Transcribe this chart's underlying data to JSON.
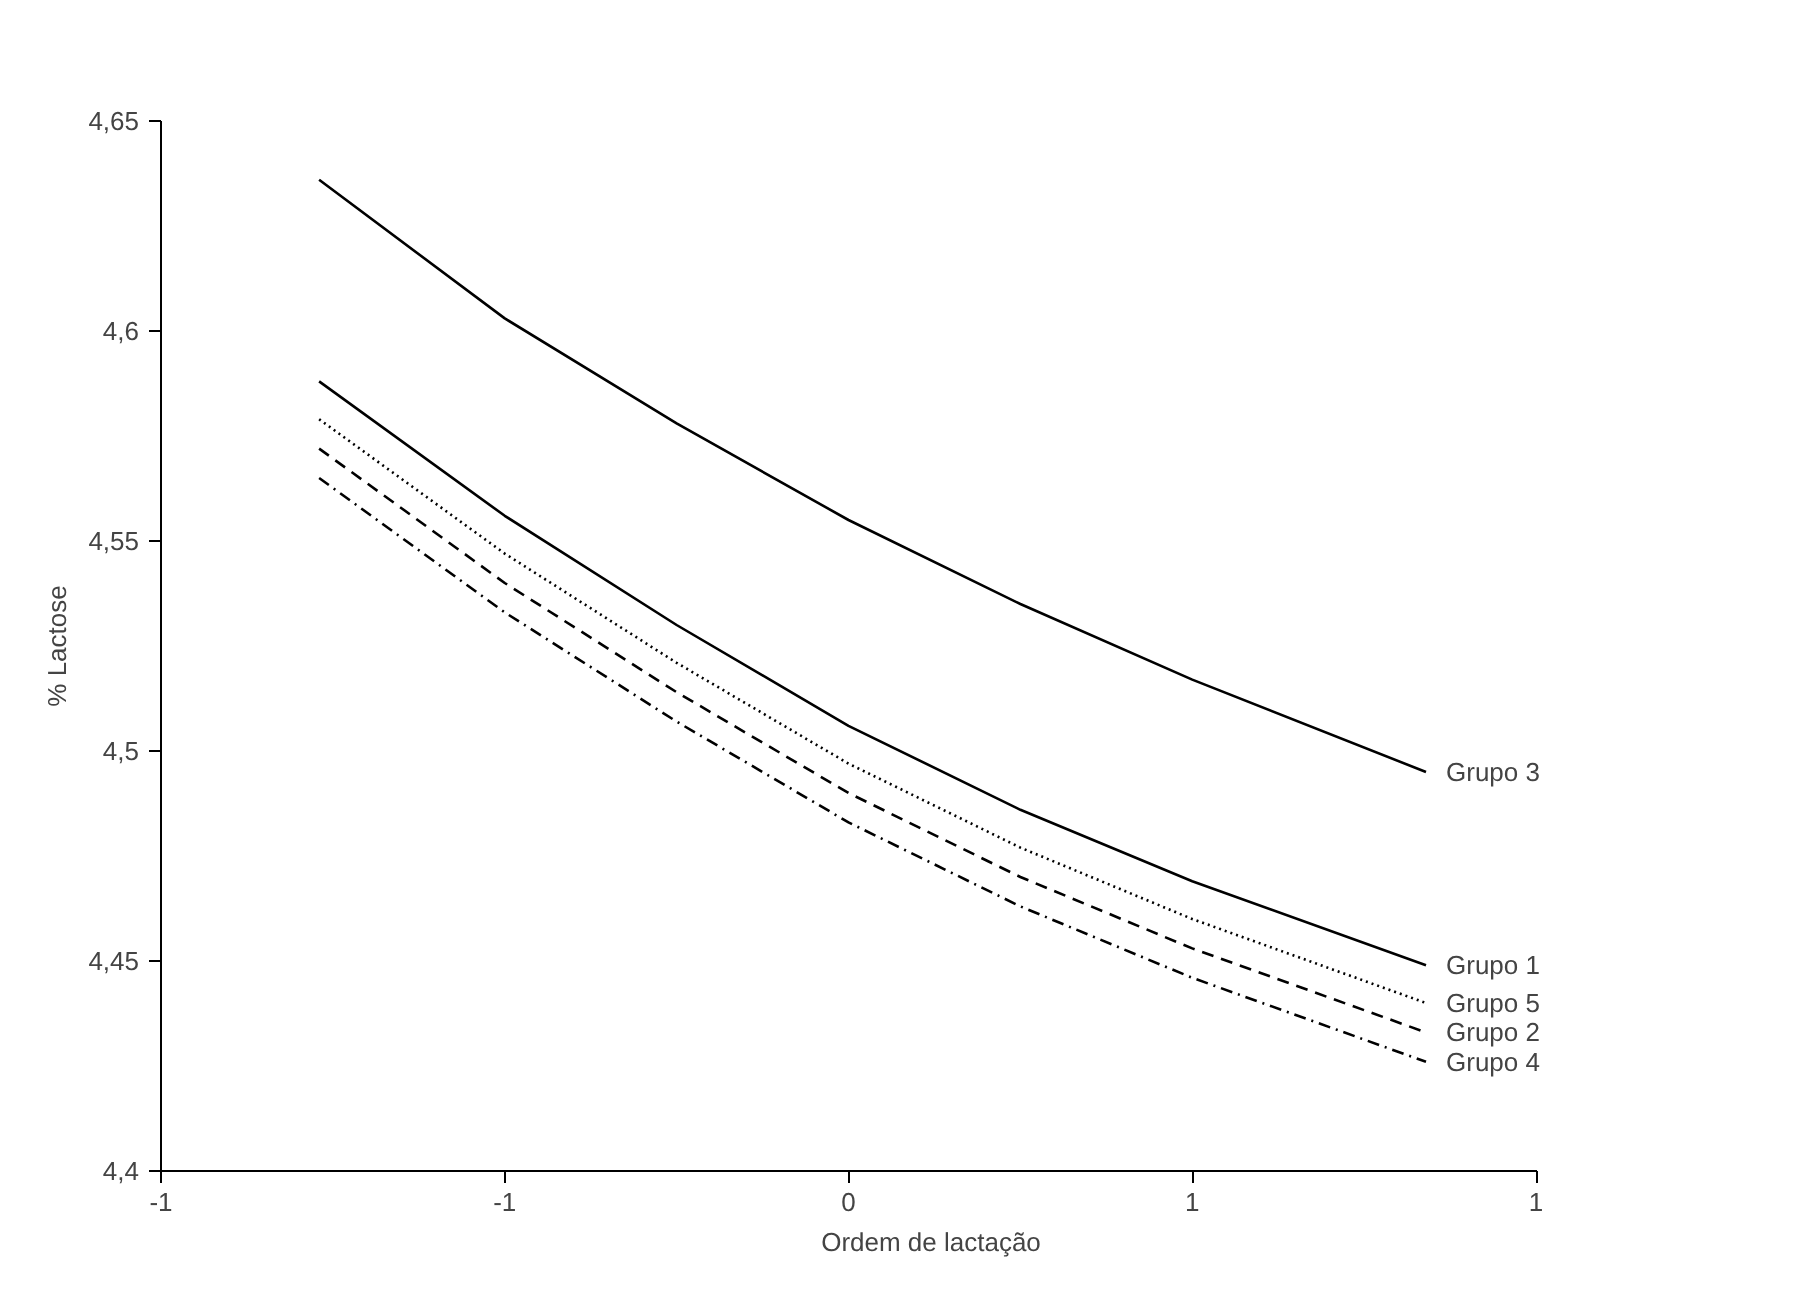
{
  "chart_data": {
    "type": "line",
    "xlabel": "Ordem de lactação",
    "ylabel": "% Lactose",
    "x": [
      -0.77,
      -0.5,
      -0.25,
      0,
      0.25,
      0.5,
      0.84
    ],
    "xlim": [
      -1,
      1
    ],
    "xticks": [
      {
        "value": -1,
        "label": "-1"
      },
      {
        "value": -0.5,
        "label": "-1"
      },
      0,
      {
        "value": 0.5,
        "label": "1"
      },
      1
    ],
    "ylim": [
      4.4,
      4.65
    ],
    "yticks": [
      {
        "value": 4.4,
        "label": "4,4"
      },
      {
        "value": 4.45,
        "label": "4,45"
      },
      {
        "value": 4.5,
        "label": "4,5"
      },
      {
        "value": 4.55,
        "label": "4,55"
      },
      {
        "value": 4.6,
        "label": "4,6"
      },
      {
        "value": 4.65,
        "label": "4,65"
      }
    ],
    "grid": false,
    "series": [
      {
        "name": "Grupo 3",
        "color": "#000000",
        "line_style": "solid",
        "values": [
          4.636,
          4.603,
          4.578,
          4.555,
          4.535,
          4.517,
          4.495
        ]
      },
      {
        "name": "Grupo 1",
        "color": "#000000",
        "line_style": "solid",
        "values": [
          4.588,
          4.556,
          4.53,
          4.506,
          4.486,
          4.469,
          4.449
        ]
      },
      {
        "name": "Grupo 5",
        "color": "#000000",
        "line_style": "dotted",
        "values": [
          4.579,
          4.547,
          4.521,
          4.497,
          4.477,
          4.46,
          4.44
        ]
      },
      {
        "name": "Grupo 2",
        "color": "#000000",
        "line_style": "dashed",
        "values": [
          4.572,
          4.54,
          4.514,
          4.49,
          4.47,
          4.453,
          4.433
        ]
      },
      {
        "name": "Grupo 4",
        "color": "#000000",
        "line_style": "dashdot",
        "values": [
          4.565,
          4.533,
          4.507,
          4.483,
          4.463,
          4.446,
          4.426
        ]
      }
    ]
  }
}
